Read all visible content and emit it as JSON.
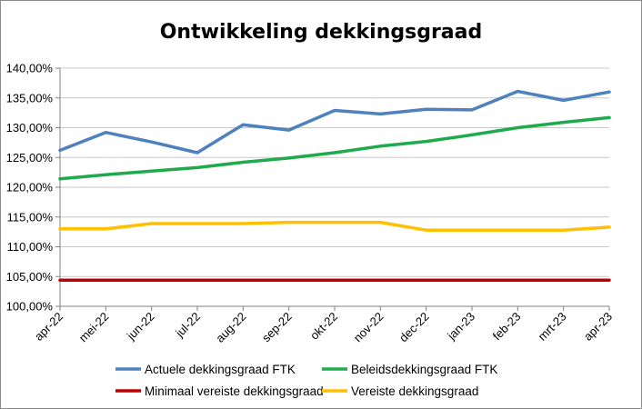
{
  "chart_data": {
    "type": "line",
    "title": "Ontwikkeling dekkingsgraad",
    "xlabel": "",
    "ylabel": "",
    "categories": [
      "apr-22",
      "mei-22",
      "jun-22",
      "jul-22",
      "aug-22",
      "sep-22",
      "okt-22",
      "nov-22",
      "dec-22",
      "jan-23",
      "feb-23",
      "mrt-23",
      "apr-23"
    ],
    "ylim": [
      100,
      140
    ],
    "yticks": [
      100,
      105,
      110,
      115,
      120,
      125,
      130,
      135,
      140
    ],
    "ytick_labels": [
      "100,00%",
      "105,00%",
      "110,00%",
      "115,00%",
      "120,00%",
      "125,00%",
      "130,00%",
      "135,00%",
      "140,00%"
    ],
    "grid": "horizontal",
    "legend_position": "bottom",
    "series": [
      {
        "name": "Actuele dekkingsgraad FTK",
        "color": "#4f81bd",
        "values": [
          126.2,
          129.2,
          127.6,
          125.8,
          130.5,
          129.6,
          132.9,
          132.3,
          133.1,
          133.0,
          136.1,
          134.6,
          136.0
        ]
      },
      {
        "name": "Beleidsdekkingsgraad FTK",
        "color": "#1faa4b",
        "values": [
          121.4,
          122.1,
          122.7,
          123.3,
          124.2,
          124.9,
          125.8,
          126.9,
          127.7,
          128.8,
          130.0,
          130.9,
          131.7
        ]
      },
      {
        "name": "Minimaal vereiste dekkingsgraad",
        "color": "#c00000",
        "values": [
          104.4,
          104.4,
          104.4,
          104.4,
          104.4,
          104.4,
          104.4,
          104.4,
          104.4,
          104.4,
          104.4,
          104.4,
          104.4
        ]
      },
      {
        "name": "Vereiste dekkingsgraad",
        "color": "#ffc000",
        "values": [
          113.0,
          113.0,
          113.9,
          113.9,
          113.9,
          114.1,
          114.1,
          114.1,
          112.8,
          112.8,
          112.8,
          112.8,
          113.3
        ]
      }
    ]
  }
}
